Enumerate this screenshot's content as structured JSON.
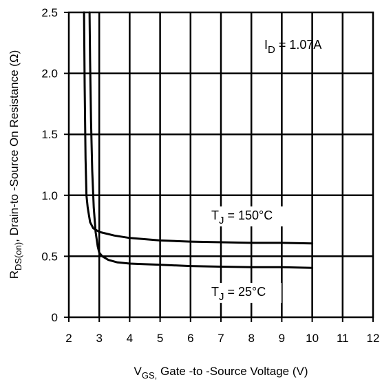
{
  "chart_data": {
    "type": "line",
    "title": "",
    "xlabel": {
      "main": "V",
      "sub": "GS,",
      "rest": " Gate -to -Source Voltage  (V)"
    },
    "ylabel": {
      "main": "R",
      "sub": "DS(on)",
      "rest": ",  Drain-to -Source On Resistance  (Ω)"
    },
    "xlim": [
      2,
      12
    ],
    "ylim": [
      0,
      2.5
    ],
    "x_ticks": [
      "2",
      "3",
      "4",
      "5",
      "6",
      "7",
      "8",
      "9",
      "10",
      "11",
      "12"
    ],
    "y_ticks": [
      "0",
      "0.5",
      "1.0",
      "1.5",
      "2.0",
      "2.5"
    ],
    "grid": true,
    "annotations": [
      {
        "id": "id",
        "main": "I",
        "sub": "D",
        "rest": " = 1.07A"
      },
      {
        "id": "t150",
        "main": "T",
        "sub": "J",
        "rest": " = 150°C"
      },
      {
        "id": "t25",
        "main": "T",
        "sub": "J",
        "rest": " = 25°C"
      }
    ],
    "series": [
      {
        "annotation": "t150",
        "color": "#000000",
        "x": [
          2.5,
          2.52,
          2.55,
          2.58,
          2.62,
          2.7,
          2.8,
          3.0,
          3.5,
          4.0,
          5.0,
          6.0,
          7.0,
          8.0,
          9.0,
          10.0
        ],
        "y": [
          2.5,
          1.9,
          1.3,
          1.0,
          0.9,
          0.78,
          0.73,
          0.7,
          0.67,
          0.65,
          0.63,
          0.62,
          0.615,
          0.61,
          0.61,
          0.605
        ]
      },
      {
        "annotation": "t25",
        "color": "#000000",
        "x": [
          2.68,
          2.7,
          2.73,
          2.77,
          2.82,
          2.88,
          2.95,
          3.0,
          3.1,
          3.3,
          3.6,
          4.0,
          5.0,
          6.0,
          7.0,
          8.0,
          9.0,
          10.0
        ],
        "y": [
          2.5,
          2.1,
          1.6,
          1.2,
          0.9,
          0.7,
          0.58,
          0.53,
          0.5,
          0.47,
          0.45,
          0.44,
          0.43,
          0.42,
          0.415,
          0.41,
          0.41,
          0.405
        ]
      }
    ]
  }
}
